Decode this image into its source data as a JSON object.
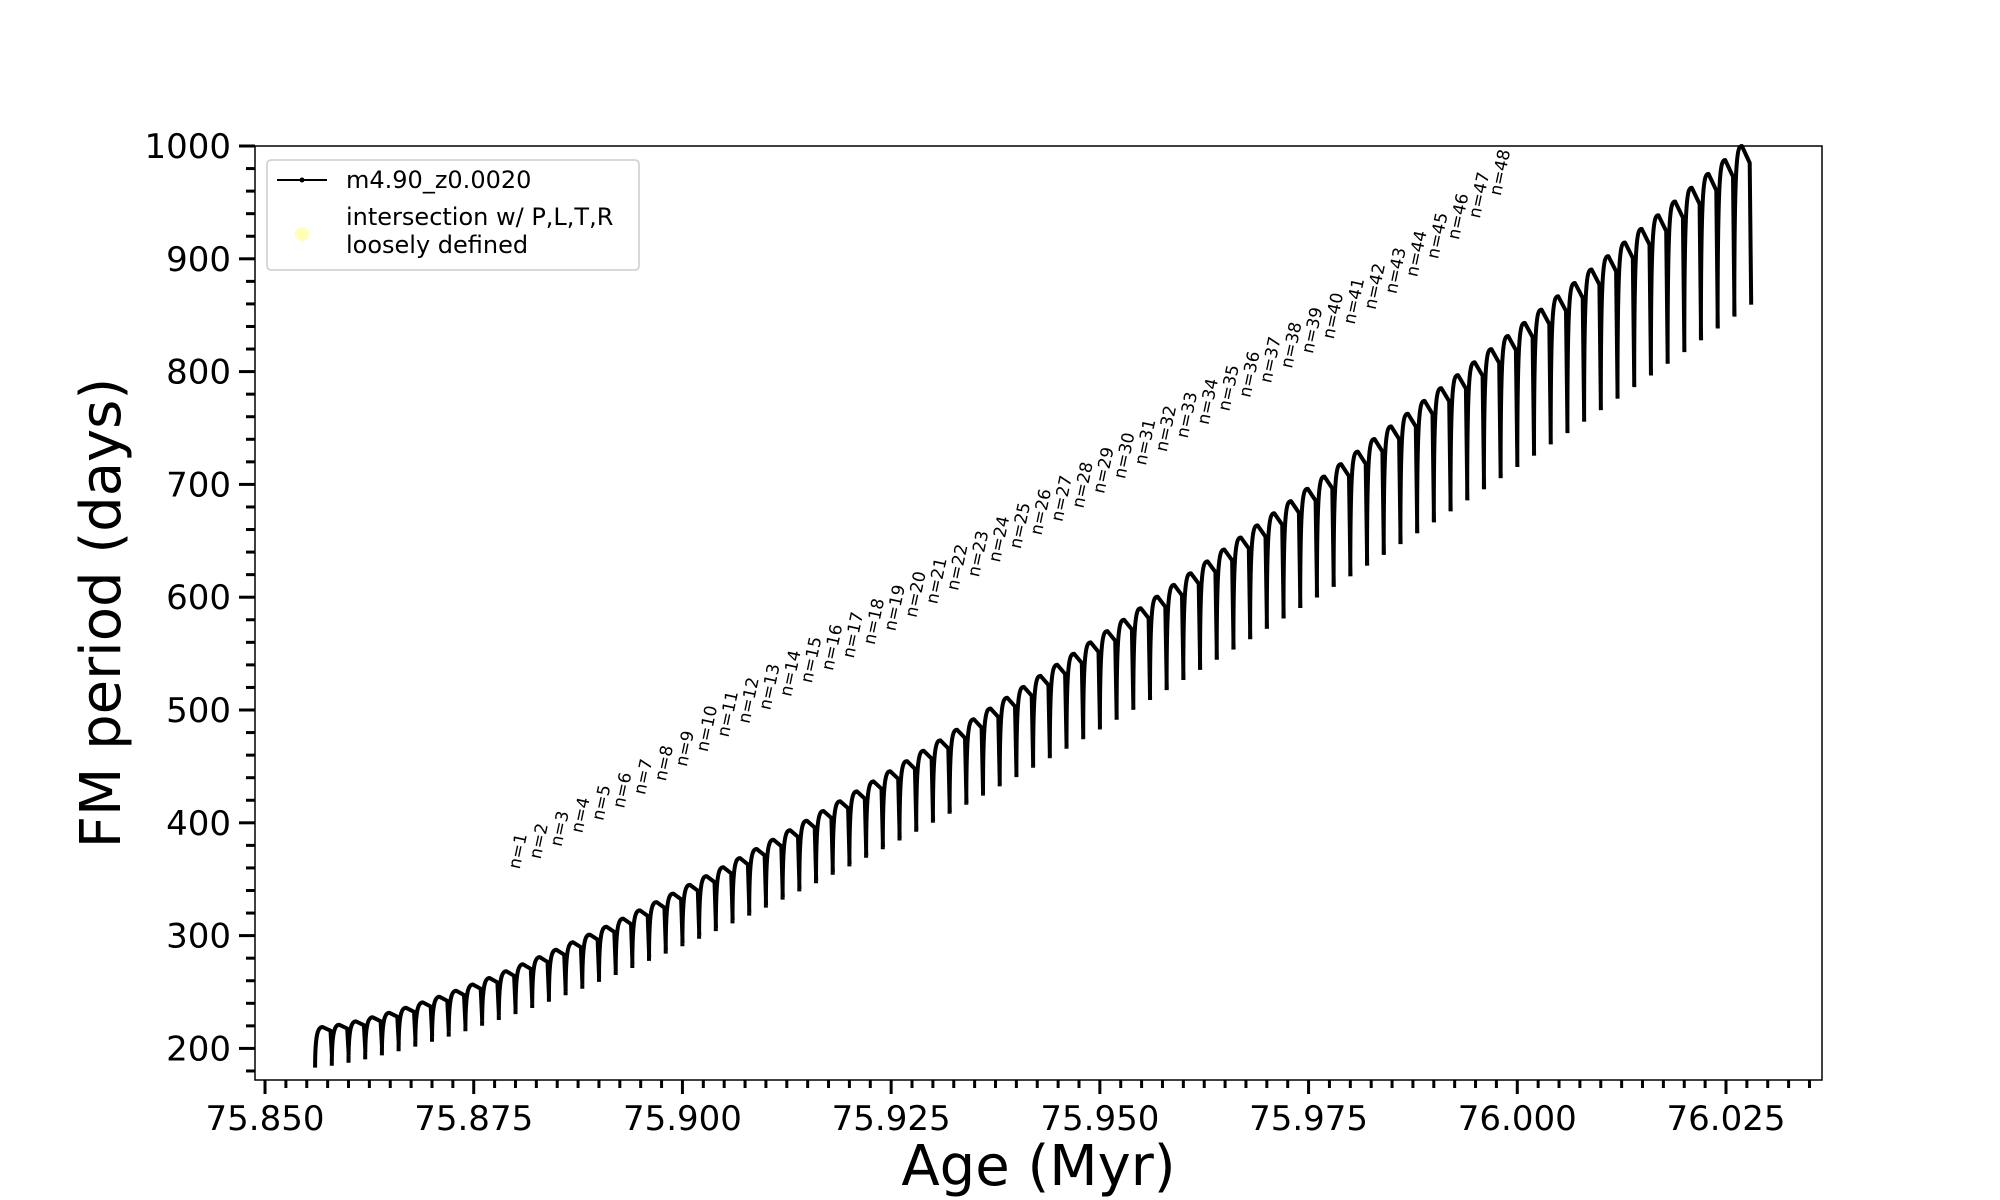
{
  "chart_data": {
    "type": "line",
    "xlabel": "Age (Myr)",
    "ylabel": "FM period (days)",
    "xlim": [
      75.8488,
      76.0365
    ],
    "ylim": [
      172,
      1000
    ],
    "x_ticks": [
      75.85,
      75.875,
      75.9,
      75.925,
      75.95,
      75.975,
      76.0,
      76.025
    ],
    "x_tick_labels": [
      "75.850",
      "75.875",
      "75.900",
      "75.925",
      "75.950",
      "75.975",
      "76.000",
      "76.025"
    ],
    "y_ticks": [
      200,
      300,
      400,
      500,
      600,
      700,
      800,
      900,
      1000
    ],
    "y_tick_labels": [
      "200",
      "300",
      "400",
      "500",
      "600",
      "700",
      "800",
      "900",
      "1000"
    ],
    "grid": false,
    "legend": {
      "placement": "top-left",
      "entries": [
        {
          "label": "m4.90_z0.0020",
          "marker": "line-dot",
          "color": "#000000"
        },
        {
          "label_lines": [
            "intersection w/ P,L,T,R",
            "loosely defined"
          ],
          "marker": "circle",
          "color": "#ffff99"
        }
      ]
    },
    "series": [
      {
        "name": "m4.90_z0.0020",
        "color": "#000000",
        "cycle_start_age": 75.856,
        "cycle_interval": 0.002,
        "cycles": 86,
        "peak_periods_first_last": [
          219,
          1000
        ],
        "trough_periods_first_last": [
          183,
          850
        ],
        "description_note": ""
      }
    ],
    "annotations": [
      {
        "label": "n=1",
        "x": 75.8805,
        "y": 353
      },
      {
        "label": "n=2",
        "x": 75.883,
        "y": 362
      },
      {
        "label": "n=3",
        "x": 75.8855,
        "y": 373
      },
      {
        "label": "n=4",
        "x": 75.888,
        "y": 385
      },
      {
        "label": "n=5",
        "x": 75.8905,
        "y": 396
      },
      {
        "label": "n=6",
        "x": 75.893,
        "y": 407
      },
      {
        "label": "n=7",
        "x": 75.8955,
        "y": 419
      },
      {
        "label": "n=8",
        "x": 75.898,
        "y": 431
      },
      {
        "label": "n=9",
        "x": 75.9005,
        "y": 444
      },
      {
        "label": "n=10",
        "x": 75.903,
        "y": 457
      },
      {
        "label": "n=11",
        "x": 75.9055,
        "y": 470
      },
      {
        "label": "n=12",
        "x": 75.908,
        "y": 482
      },
      {
        "label": "n=13",
        "x": 75.9105,
        "y": 494
      },
      {
        "label": "n=14",
        "x": 75.913,
        "y": 506
      },
      {
        "label": "n=15",
        "x": 75.9155,
        "y": 518
      },
      {
        "label": "n=16",
        "x": 75.918,
        "y": 529
      },
      {
        "label": "n=17",
        "x": 75.9205,
        "y": 540
      },
      {
        "label": "n=18",
        "x": 75.923,
        "y": 552
      },
      {
        "label": "n=19",
        "x": 75.9255,
        "y": 564
      },
      {
        "label": "n=20",
        "x": 75.928,
        "y": 576
      },
      {
        "label": "n=21",
        "x": 75.9305,
        "y": 588
      },
      {
        "label": "n=22",
        "x": 75.933,
        "y": 600
      },
      {
        "label": "n=23",
        "x": 75.9355,
        "y": 612
      },
      {
        "label": "n=24",
        "x": 75.938,
        "y": 625
      },
      {
        "label": "n=25",
        "x": 75.9405,
        "y": 637
      },
      {
        "label": "n=26",
        "x": 75.943,
        "y": 649
      },
      {
        "label": "n=27",
        "x": 75.9455,
        "y": 661
      },
      {
        "label": "n=28",
        "x": 75.948,
        "y": 673
      },
      {
        "label": "n=29",
        "x": 75.9505,
        "y": 686
      },
      {
        "label": "n=30",
        "x": 75.953,
        "y": 699
      },
      {
        "label": "n=31",
        "x": 75.9555,
        "y": 711
      },
      {
        "label": "n=32",
        "x": 75.958,
        "y": 723
      },
      {
        "label": "n=33",
        "x": 75.9605,
        "y": 735
      },
      {
        "label": "n=34",
        "x": 75.963,
        "y": 747
      },
      {
        "label": "n=35",
        "x": 75.9655,
        "y": 759
      },
      {
        "label": "n=36",
        "x": 75.968,
        "y": 771
      },
      {
        "label": "n=37",
        "x": 75.9705,
        "y": 784
      },
      {
        "label": "n=38",
        "x": 75.973,
        "y": 797
      },
      {
        "label": "n=39",
        "x": 75.9755,
        "y": 810
      },
      {
        "label": "n=40",
        "x": 75.978,
        "y": 823
      },
      {
        "label": "n=41",
        "x": 75.9805,
        "y": 836
      },
      {
        "label": "n=42",
        "x": 75.983,
        "y": 849
      },
      {
        "label": "n=43",
        "x": 75.9855,
        "y": 863
      },
      {
        "label": "n=44",
        "x": 75.988,
        "y": 878
      },
      {
        "label": "n=45",
        "x": 75.9905,
        "y": 894
      },
      {
        "label": "n=46",
        "x": 75.993,
        "y": 911
      },
      {
        "label": "n=47",
        "x": 75.9955,
        "y": 930
      },
      {
        "label": "n=48",
        "x": 75.998,
        "y": 950
      }
    ]
  }
}
